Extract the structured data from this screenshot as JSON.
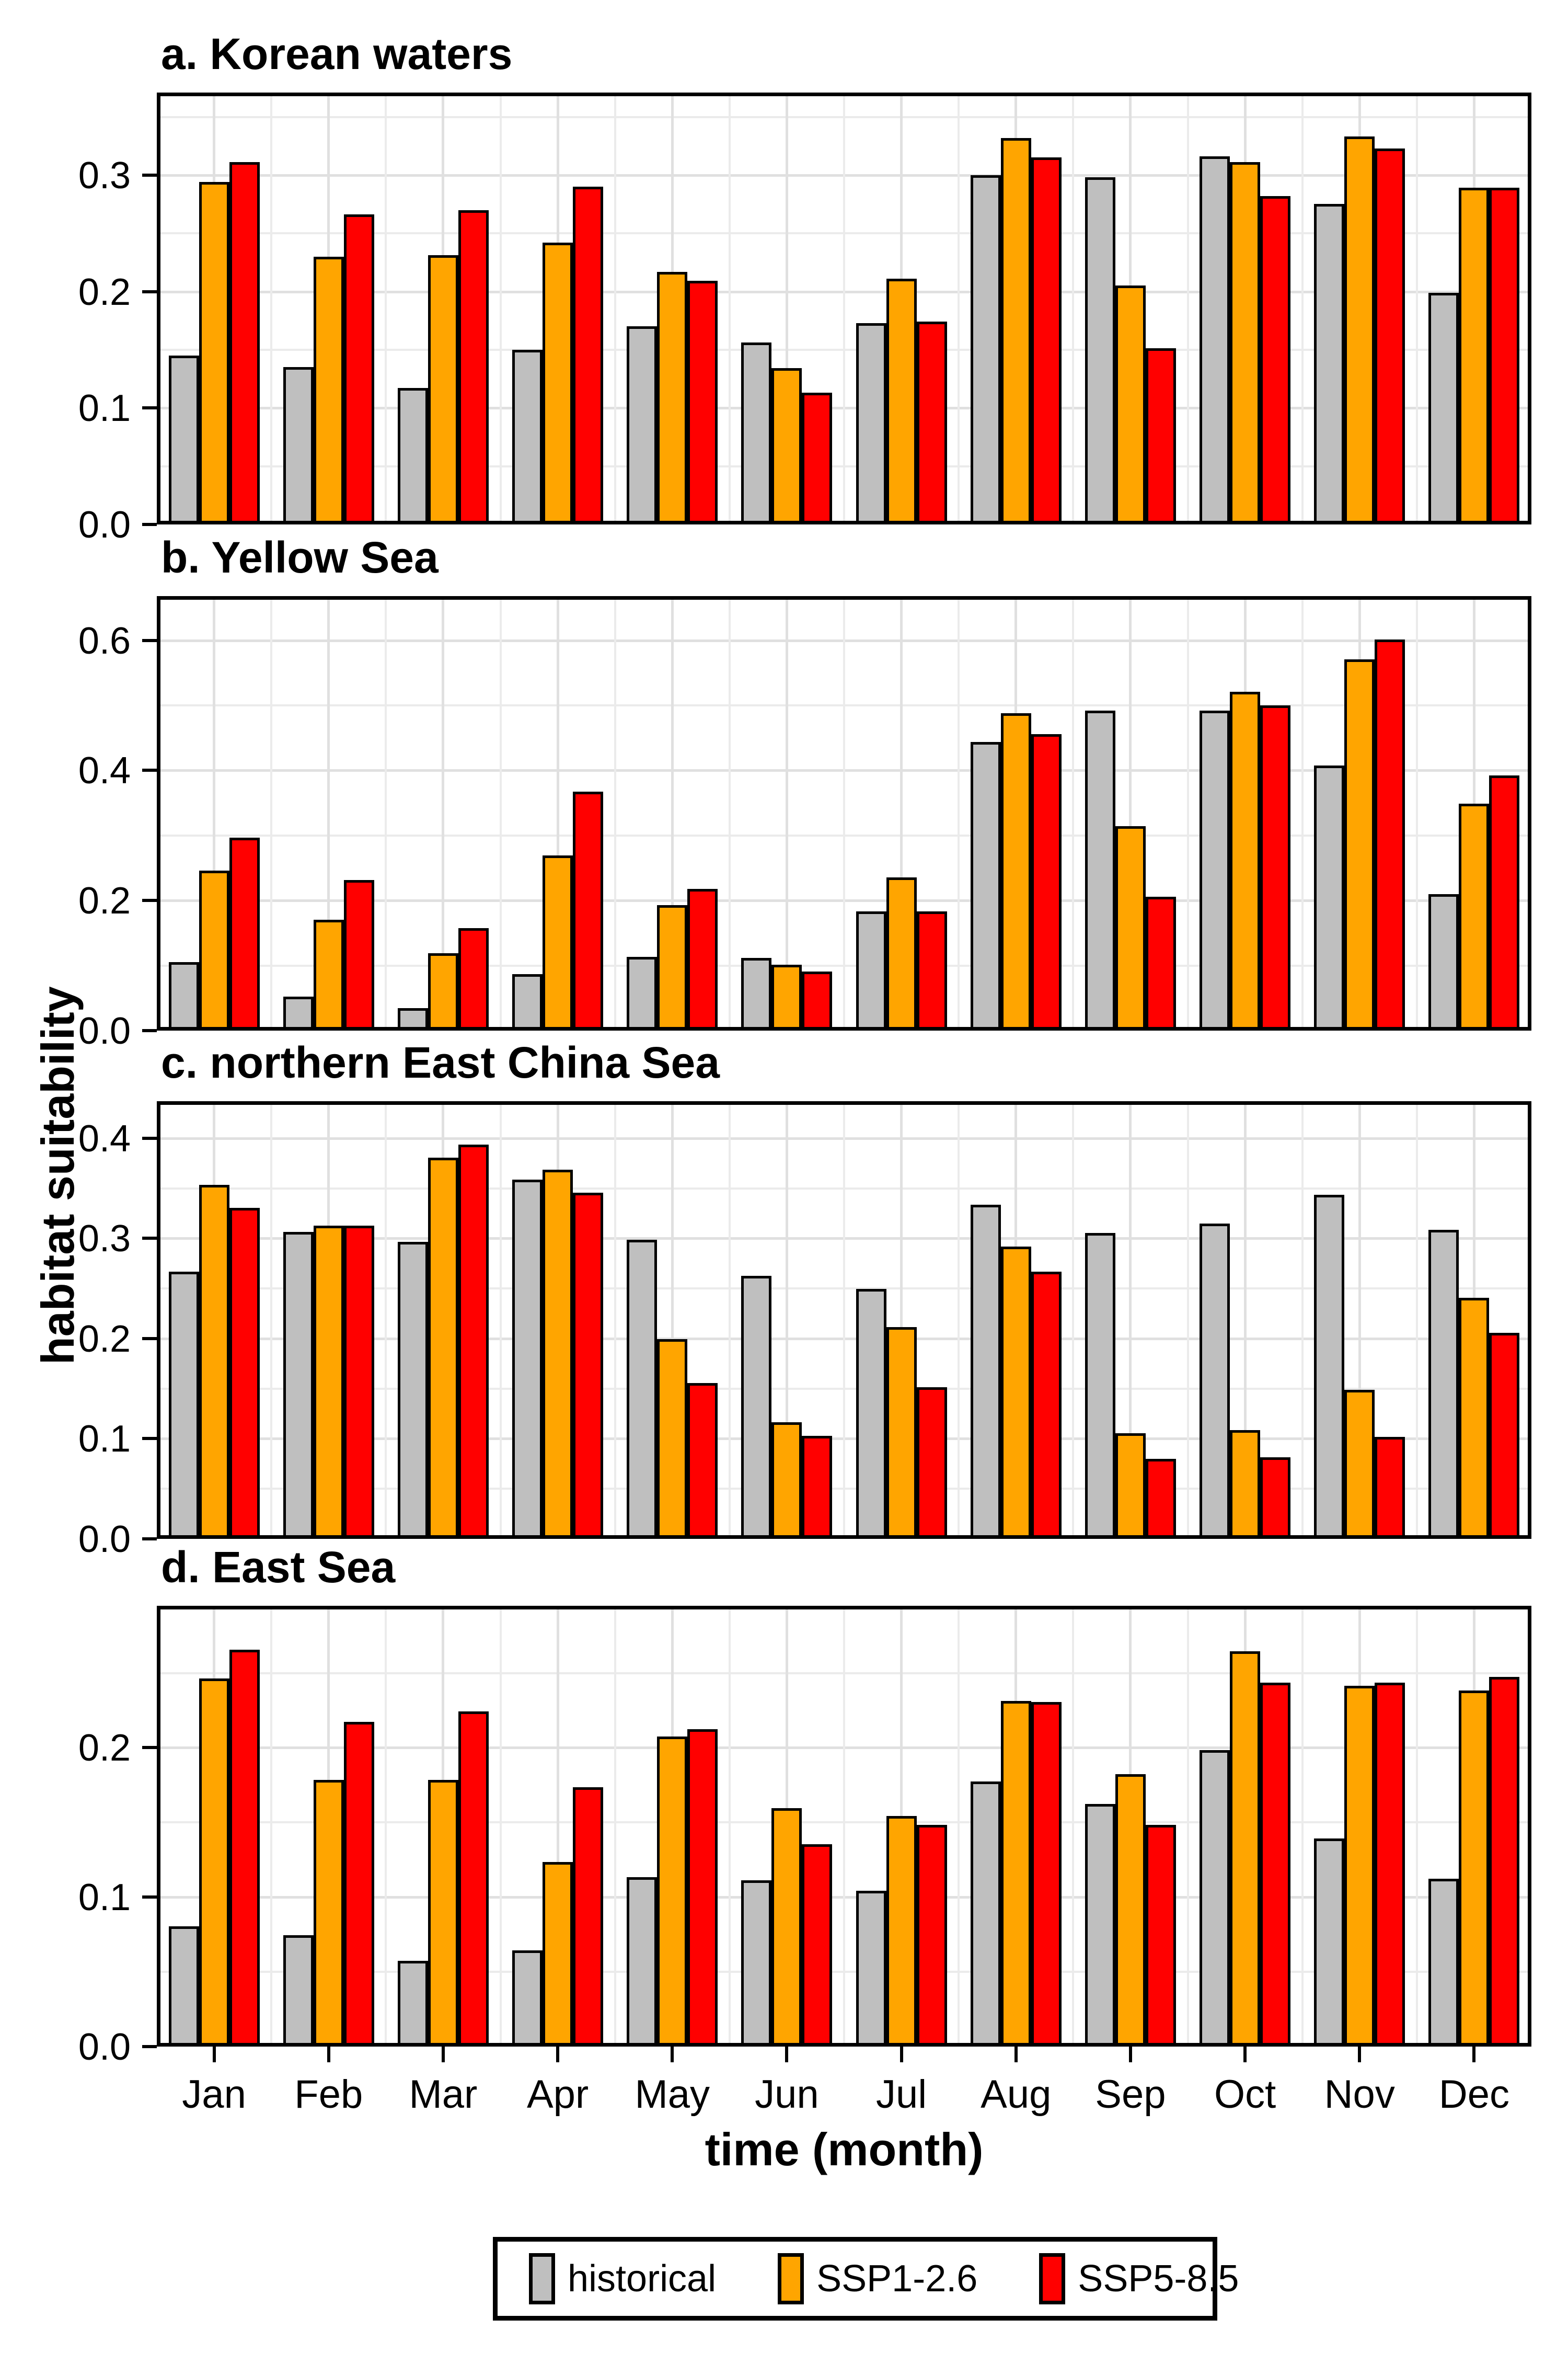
{
  "figure": {
    "y_axis_title": "habitat suitability",
    "x_axis_title": "time (month)"
  },
  "legend": {
    "position": "bottom",
    "items": [
      {
        "label": "historical",
        "color": "#BFBFBF"
      },
      {
        "label": "SSP1-2.6",
        "color": "#FFA500"
      },
      {
        "label": "SSP5-8.5",
        "color": "#FF0000"
      }
    ]
  },
  "chart_data": {
    "type": "bar",
    "grouping": "dodged",
    "grid": true,
    "legend_position": "bottom",
    "xlabel": "time (month)",
    "ylabel": "habitat suitability",
    "categories": [
      "Jan",
      "Feb",
      "Mar",
      "Apr",
      "May",
      "Jun",
      "Jul",
      "Aug",
      "Sep",
      "Oct",
      "Nov",
      "Dec"
    ],
    "series_names": [
      "historical",
      "SSP1-2.6",
      "SSP5-8.5"
    ],
    "series_colors": [
      "#BFBFBF",
      "#FFA500",
      "#FF0000"
    ],
    "panels": [
      {
        "id": "a",
        "title": "a. Korean waters",
        "ylim": [
          0,
          0.371
        ],
        "ytick_values": [
          0,
          0.1,
          0.2,
          0.3
        ],
        "ytick_labels": [
          "0.0",
          "0.1",
          "0.2",
          "0.3"
        ],
        "grid_step": 0.05,
        "series": [
          {
            "name": "historical",
            "values": [
              0.142,
              0.132,
              0.114,
              0.147,
              0.167,
              0.153,
              0.17,
              0.297,
              0.295,
              0.313,
              0.272,
              0.196
            ]
          },
          {
            "name": "SSP1-2.6",
            "values": [
              0.291,
              0.227,
              0.228,
              0.239,
              0.214,
              0.131,
              0.208,
              0.329,
              0.202,
              0.308,
              0.33,
              0.286
            ]
          },
          {
            "name": "SSP5-8.5",
            "values": [
              0.308,
              0.263,
              0.267,
              0.287,
              0.206,
              0.11,
              0.171,
              0.312,
              0.148,
              0.279,
              0.32,
              0.286
            ]
          }
        ]
      },
      {
        "id": "b",
        "title": "b. Yellow Sea",
        "ylim": [
          0,
          0.668
        ],
        "ytick_values": [
          0,
          0.2,
          0.4,
          0.6
        ],
        "ytick_labels": [
          "0.0",
          "0.2",
          "0.4",
          "0.6"
        ],
        "grid_step": 0.1,
        "series": [
          {
            "name": "historical",
            "values": [
              0.1,
              0.047,
              0.029,
              0.081,
              0.108,
              0.106,
              0.178,
              0.438,
              0.486,
              0.486,
              0.402,
              0.204
            ]
          },
          {
            "name": "SSP1-2.6",
            "values": [
              0.24,
              0.165,
              0.113,
              0.264,
              0.187,
              0.096,
              0.23,
              0.482,
              0.309,
              0.515,
              0.565,
              0.343
            ]
          },
          {
            "name": "SSP5-8.5",
            "values": [
              0.291,
              0.226,
              0.152,
              0.362,
              0.212,
              0.085,
              0.178,
              0.45,
              0.2,
              0.494,
              0.596,
              0.387
            ]
          }
        ]
      },
      {
        "id": "c",
        "title": "c. northern East China Sea",
        "ylim": [
          0,
          0.437
        ],
        "ytick_values": [
          0,
          0.1,
          0.2,
          0.3,
          0.4
        ],
        "ytick_labels": [
          "0.0",
          "0.1",
          "0.2",
          "0.3",
          "0.4"
        ],
        "grid_step": 0.05,
        "series": [
          {
            "name": "historical",
            "values": [
              0.263,
              0.303,
              0.293,
              0.355,
              0.295,
              0.259,
              0.246,
              0.33,
              0.302,
              0.311,
              0.34,
              0.305
            ]
          },
          {
            "name": "SSP1-2.6",
            "values": [
              0.35,
              0.309,
              0.377,
              0.365,
              0.196,
              0.113,
              0.208,
              0.288,
              0.102,
              0.105,
              0.145,
              0.237
            ]
          },
          {
            "name": "SSP5-8.5",
            "values": [
              0.327,
              0.309,
              0.39,
              0.342,
              0.152,
              0.099,
              0.148,
              0.263,
              0.076,
              0.078,
              0.098,
              0.202
            ]
          }
        ]
      },
      {
        "id": "d",
        "title": "d. East Sea",
        "ylim": [
          0,
          0.295
        ],
        "ytick_values": [
          0,
          0.1,
          0.2
        ],
        "ytick_labels": [
          "0.0",
          "0.1",
          "0.2"
        ],
        "grid_step": 0.05,
        "series": [
          {
            "name": "historical",
            "values": [
              0.078,
              0.072,
              0.055,
              0.062,
              0.111,
              0.109,
              0.102,
              0.175,
              0.16,
              0.196,
              0.137,
              0.11
            ]
          },
          {
            "name": "SSP1-2.6",
            "values": [
              0.244,
              0.176,
              0.176,
              0.121,
              0.205,
              0.157,
              0.152,
              0.229,
              0.18,
              0.262,
              0.239,
              0.236
            ]
          },
          {
            "name": "SSP5-8.5",
            "values": [
              0.263,
              0.215,
              0.222,
              0.171,
              0.21,
              0.133,
              0.146,
              0.228,
              0.146,
              0.241,
              0.241,
              0.245
            ]
          }
        ]
      }
    ]
  }
}
